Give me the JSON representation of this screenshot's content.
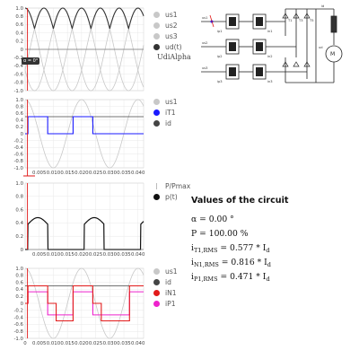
{
  "colors": {
    "us_gray": "#c8c8c8",
    "ud_dark": "#333333",
    "iT1_blue": "#1a1aff",
    "id_dark": "#444444",
    "iN1_red": "#e21b1b",
    "iP1_magenta": "#ee22cc",
    "cursor_red": "#e01515",
    "p_black": "#111111"
  },
  "plot1": {
    "legend": [
      "us1",
      "us2",
      "us3",
      "ud(t)"
    ],
    "yticks": [
      "1.0",
      "0.8",
      "0.6",
      "0.4",
      "0.2",
      "0",
      "-0.2",
      "-0.4",
      "-0.6",
      "-0.8",
      "-1.0"
    ],
    "udi_label": "UdiAlpha",
    "alpha_flag": "α = 0°"
  },
  "plot2": {
    "legend": [
      "us1",
      "iT1",
      "id"
    ],
    "yticks": [
      "1.0",
      "0.8",
      "0.6",
      "0.4",
      "0.2",
      "0",
      "-0.2",
      "-0.4",
      "-0.6",
      "-0.8",
      "-1.0"
    ],
    "xticks": [
      "0.005",
      "0.010",
      "0.015",
      "0.020",
      "0.025",
      "0.030",
      "0.035",
      "0.040"
    ]
  },
  "plot3": {
    "legend": [
      "P/Pmax",
      "p(t)"
    ],
    "yticks": [
      "1.0",
      "0.8",
      "0.6",
      "0.4",
      "0.2",
      "0"
    ],
    "xticks": [
      "0.005",
      "0.010",
      "0.015",
      "0.020",
      "0.025",
      "0.030",
      "0.035",
      "0.040"
    ]
  },
  "plot4": {
    "legend": [
      "us1",
      "id",
      "iN1",
      "iP1"
    ],
    "yticks": [
      "1.0",
      "0.8",
      "0.6",
      "0.4",
      "0.2",
      "0",
      "-0.2",
      "-0.4",
      "-0.6",
      "-0.8",
      "-1.0"
    ],
    "xticks": [
      "0",
      "0.005",
      "0.010",
      "0.015",
      "0.020",
      "0.025",
      "0.030",
      "0.035",
      "0.040"
    ]
  },
  "values": {
    "title": "Values of the circuit",
    "alpha": "α = 0.00 °",
    "power": "P = 100.00 %",
    "iT1_lhs_main": "i",
    "iT1_lhs_sub": "T1,RMS",
    "iT1_rhs": " = 0.577 * I",
    "iN1_lhs_main": "i",
    "iN1_lhs_sub": "N1,RMS",
    "iN1_rhs": " = 0.816 * I",
    "iP1_lhs_main": "i",
    "iP1_lhs_sub": "P1,RMS",
    "iP1_rhs": " = 0.471 * I",
    "rhs_sub": "d"
  },
  "circuit": {
    "labels": [
      "us1",
      "us2",
      "us3",
      "ip1",
      "ip2",
      "ip3",
      "in1",
      "in2",
      "in3",
      "ud",
      "id",
      "T1",
      "T3",
      "T5"
    ]
  }
}
